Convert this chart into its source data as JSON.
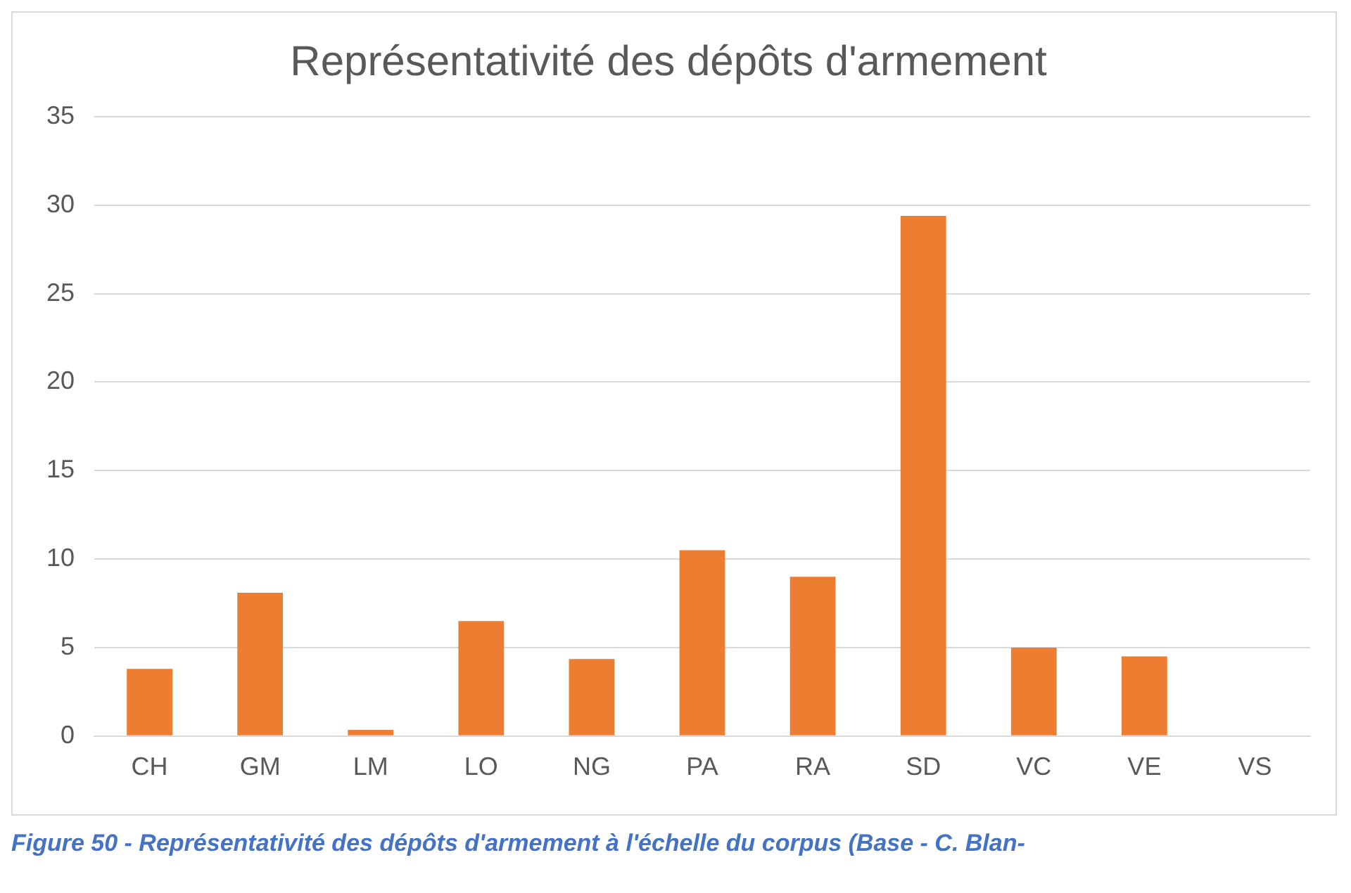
{
  "chart_data": {
    "type": "bar",
    "title": "Représentativité des dépôts d'armement",
    "categories": [
      "CH",
      "GM",
      "LM",
      "LO",
      "NG",
      "PA",
      "RA",
      "SD",
      "VC",
      "VE",
      "VS"
    ],
    "values": [
      3.8,
      8.1,
      0.35,
      6.5,
      4.35,
      10.5,
      9.0,
      29.4,
      5.0,
      4.5,
      0
    ],
    "color": "#ed7d31",
    "ylim": [
      0,
      35
    ],
    "yticks": [
      0,
      5,
      10,
      15,
      20,
      25,
      30,
      35
    ],
    "grid": "y",
    "annotations": [
      "Figure 50 - Représentativité des dépôts d'armement à l'échelle du corpus (Base - C. Blan-"
    ]
  }
}
